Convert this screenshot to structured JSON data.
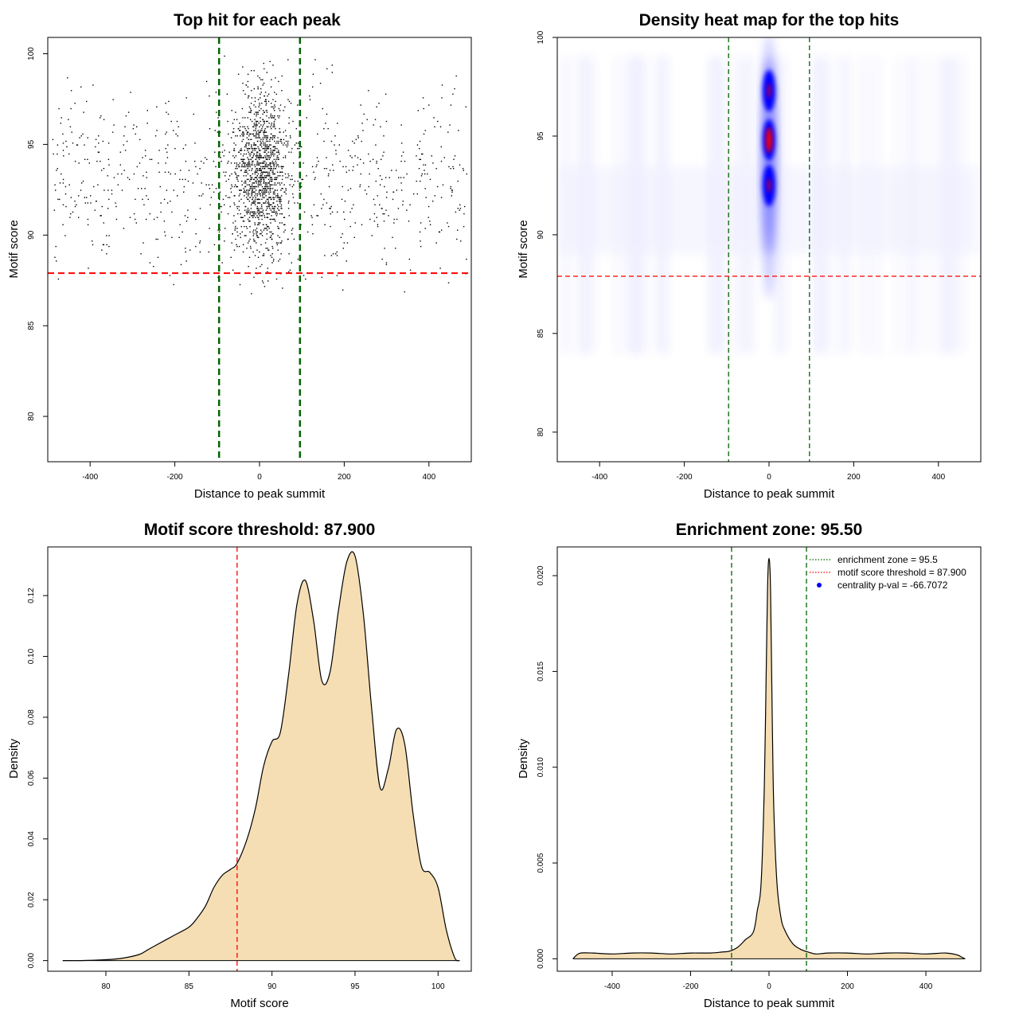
{
  "chart_data": [
    {
      "id": "scatter",
      "type": "scatter",
      "title": "Top hit for each peak",
      "xlabel": "Distance to peak summit",
      "ylabel": "Motif score",
      "xlim": [
        -500,
        500
      ],
      "ylim": [
        77.5,
        100.9
      ],
      "xticks": [
        "-400",
        "-200",
        "0",
        "200",
        "400"
      ],
      "yticks": [
        "80",
        "85",
        "90",
        "95",
        "100"
      ],
      "xtick_values": [
        -400,
        -200,
        0,
        200,
        400
      ],
      "ytick_values": [
        80,
        85,
        90,
        95,
        100
      ],
      "vlines": [
        -95.5,
        95.5
      ],
      "hline": 87.9,
      "point_distribution": {
        "background_points_per_row": 12,
        "central_x_sd": 32,
        "score_mode": 93,
        "n_points_estimate": 9000
      },
      "colors": {
        "points": "#000000",
        "vline": "#006400",
        "hline": "#ff0000"
      }
    },
    {
      "id": "heatmap",
      "type": "heatmap",
      "title": "Density heat map for the top hits",
      "xlabel": "Distance to peak summit",
      "ylabel": "Motif score",
      "xlim": [
        -500,
        500
      ],
      "ylim": [
        78.5,
        100
      ],
      "xticks": [
        "-400",
        "-200",
        "0",
        "200",
        "400"
      ],
      "yticks": [
        "80",
        "85",
        "90",
        "95",
        "100"
      ],
      "xtick_values": [
        -400,
        -200,
        0,
        200,
        400
      ],
      "ytick_values": [
        80,
        85,
        90,
        95,
        100
      ],
      "vlines": [
        -95.5,
        95.5
      ],
      "hline": 87.9,
      "hotspots": [
        {
          "x": 0,
          "y": 97.3,
          "intensity": "medium"
        },
        {
          "x": 0,
          "y": 94.8,
          "intensity": "high"
        },
        {
          "x": 0,
          "y": 92.5,
          "intensity": "medium"
        }
      ],
      "colors": {
        "low": "#ffffff",
        "mid": "#0000ff",
        "high": "#ff0000",
        "vline": "#006400",
        "hline": "#ff0000"
      }
    },
    {
      "id": "score-density",
      "type": "area",
      "title": "Motif score threshold: 87.900",
      "xlabel": "Motif score",
      "ylabel": "Density",
      "xlim": [
        76.5,
        102
      ],
      "ylim": [
        -0.0035,
        0.136
      ],
      "xticks": [
        "80",
        "85",
        "90",
        "95",
        "100"
      ],
      "yticks": [
        "0.00",
        "0.02",
        "0.04",
        "0.06",
        "0.08",
        "0.10",
        "0.12"
      ],
      "xtick_values": [
        80,
        85,
        90,
        95,
        100
      ],
      "ytick_values": [
        0,
        0.02,
        0.04,
        0.06,
        0.08,
        0.1,
        0.12
      ],
      "x": [
        77.4,
        78.5,
        80.0,
        81.0,
        82.0,
        82.5,
        83.0,
        84.0,
        85.0,
        85.5,
        86.0,
        86.5,
        87.0,
        87.5,
        87.9,
        88.5,
        89.0,
        89.5,
        90.0,
        90.5,
        91.0,
        91.5,
        92.0,
        92.5,
        93.0,
        93.5,
        94.0,
        94.5,
        95.0,
        95.5,
        96.0,
        96.5,
        97.0,
        97.5,
        98.0,
        98.5,
        99.0,
        99.5,
        100.0,
        100.5,
        101.0,
        101.3
      ],
      "y": [
        0.0,
        0.0,
        0.0003,
        0.0008,
        0.002,
        0.0035,
        0.005,
        0.008,
        0.011,
        0.014,
        0.018,
        0.024,
        0.028,
        0.03,
        0.032,
        0.04,
        0.05,
        0.064,
        0.072,
        0.075,
        0.094,
        0.117,
        0.125,
        0.112,
        0.092,
        0.095,
        0.115,
        0.131,
        0.133,
        0.114,
        0.083,
        0.057,
        0.063,
        0.076,
        0.071,
        0.048,
        0.031,
        0.029,
        0.024,
        0.01,
        0.001,
        0.0
      ],
      "vline": 87.9,
      "colors": {
        "fill": "#f5deb3",
        "line": "#000000",
        "vline": "#ff0000"
      }
    },
    {
      "id": "distance-density",
      "type": "area",
      "title": "Enrichment zone: 95.50",
      "xlabel": "Distance to peak summit",
      "ylabel": "Density",
      "xlim": [
        -540,
        540
      ],
      "ylim": [
        -0.00065,
        0.0215
      ],
      "xticks": [
        "-400",
        "-200",
        "0",
        "200",
        "400"
      ],
      "yticks": [
        "0.000",
        "0.005",
        "0.010",
        "0.015",
        "0.020"
      ],
      "xtick_values": [
        -400,
        -200,
        0,
        200,
        400
      ],
      "ytick_values": [
        0,
        0.005,
        0.01,
        0.015,
        0.02
      ],
      "x": [
        -500,
        -490,
        -480,
        -450,
        -400,
        -350,
        -300,
        -250,
        -200,
        -150,
        -120,
        -100,
        -80,
        -60,
        -40,
        -30,
        -20,
        -12,
        -8,
        -4,
        -2,
        0,
        2,
        4,
        8,
        12,
        20,
        30,
        40,
        60,
        80,
        100,
        120,
        150,
        200,
        250,
        300,
        350,
        400,
        450,
        480,
        490,
        500
      ],
      "y": [
        0.0,
        0.0002,
        0.0003,
        0.0003,
        0.00025,
        0.0003,
        0.0003,
        0.00025,
        0.0003,
        0.0003,
        0.00035,
        0.0004,
        0.0006,
        0.001,
        0.0014,
        0.0025,
        0.004,
        0.009,
        0.014,
        0.019,
        0.0205,
        0.0209,
        0.0205,
        0.019,
        0.013,
        0.008,
        0.004,
        0.0022,
        0.0015,
        0.0008,
        0.0005,
        0.00035,
        0.00025,
        0.0003,
        0.0003,
        0.00025,
        0.0003,
        0.0003,
        0.00025,
        0.0003,
        0.0002,
        0.0001,
        0.0
      ],
      "vlines": [
        -95.5,
        95.5
      ],
      "legend": {
        "placement": "top-right",
        "entries": [
          {
            "label": "enrichment zone = 95.5",
            "style": "dotted",
            "color": "#006400"
          },
          {
            "label": "motif score threshold = 87.900",
            "style": "dotted",
            "color": "#ff0000"
          },
          {
            "label": "centrality p-val = -66.7072",
            "style": "point",
            "color": "#0000ff"
          }
        ]
      },
      "colors": {
        "fill": "#f5deb3",
        "line": "#000000",
        "vline": "#006400"
      }
    }
  ]
}
